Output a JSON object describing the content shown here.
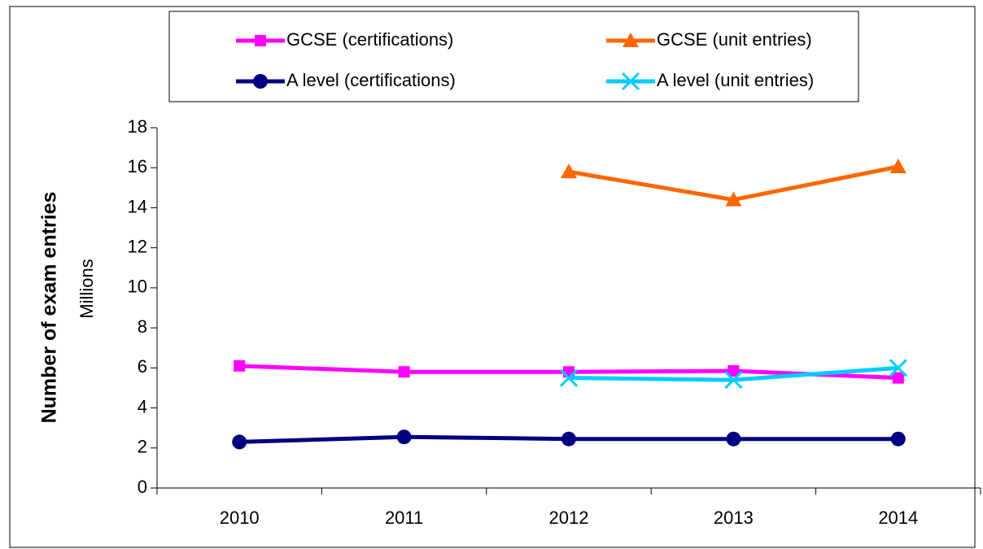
{
  "chart_data": {
    "type": "line",
    "y_label": "Number of exam entries",
    "y_unit_label": "Millions",
    "categories": [
      "2010",
      "2011",
      "2012",
      "2013",
      "2014"
    ],
    "series": [
      {
        "name": "GCSE (certifications)",
        "color": "#ff00ff",
        "marker": "square",
        "values": [
          6.1,
          5.8,
          5.8,
          5.85,
          5.5
        ]
      },
      {
        "name": "GCSE (unit entries)",
        "color": "#ff6600",
        "marker": "triangle",
        "values": [
          null,
          null,
          15.8,
          14.4,
          16.05
        ]
      },
      {
        "name": "A level (certifications)",
        "color": "#000080",
        "marker": "circle",
        "values": [
          2.3,
          2.55,
          2.45,
          2.45,
          2.45
        ]
      },
      {
        "name": "A level (unit entries)",
        "color": "#00ccff",
        "marker": "x",
        "values": [
          null,
          null,
          5.5,
          5.4,
          6.0
        ]
      }
    ],
    "ylim": [
      0,
      18
    ],
    "yticks": [
      0,
      2,
      4,
      6,
      8,
      10,
      12,
      14,
      16,
      18
    ],
    "grid": false,
    "legend": "top"
  }
}
